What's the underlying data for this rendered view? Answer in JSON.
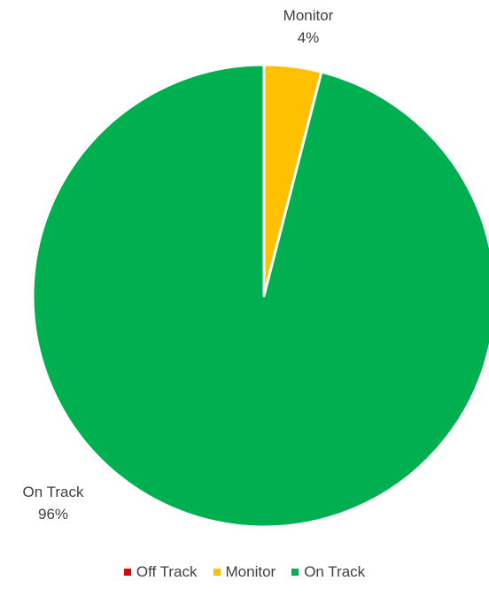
{
  "chart_data": {
    "type": "pie",
    "categories": [
      "Off Track",
      "Monitor",
      "On Track"
    ],
    "values": [
      0,
      4,
      96
    ],
    "data_labels": [
      "",
      "Monitor\n4%",
      "On Track\n96%"
    ],
    "colors": [
      "#e00000",
      "#ffc000",
      "#00b050"
    ],
    "start_angle": "12 o'clock, clockwise",
    "legend_position": "bottom"
  },
  "legend": {
    "items": [
      {
        "label": "Off Track",
        "color": "#e00000"
      },
      {
        "label": "Monitor",
        "color": "#ffc000"
      },
      {
        "label": "On Track",
        "color": "#00b050"
      }
    ]
  }
}
